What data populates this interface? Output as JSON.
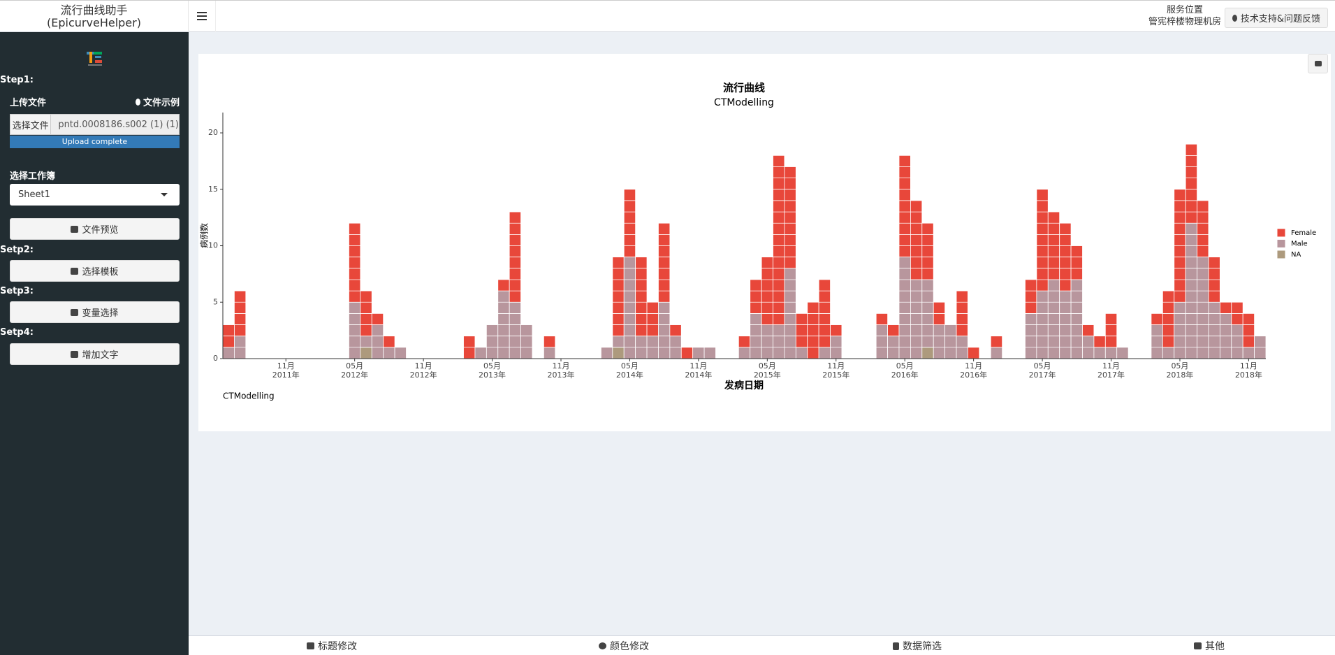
{
  "header": {
    "title_line1": "流行曲线助手",
    "title_line2": "(EpicurveHelper)",
    "service_label": "服务位置",
    "service_location": "管宪梓楼物理机房",
    "support_button": "技术支持&问题反馈"
  },
  "sidebar": {
    "step1": "Step1:",
    "upload_label": "上传文件",
    "example_link": "文件示例",
    "file_button": "选择文件",
    "file_name": "pntd.0008186.s002 (1) (1)",
    "upload_status": "Upload complete",
    "sheet_label": "选择工作簿",
    "sheet_value": "Sheet1",
    "preview_button": "文件预览",
    "step2": "Setp2:",
    "template_button": "选择模板",
    "step3": "Setp3:",
    "variable_button": "变量选择",
    "step4": "Setp4:",
    "text_button": "增加文字"
  },
  "tabs": [
    "标题修改",
    "颜色修改",
    "数据筛选",
    "其他"
  ],
  "chart_data": {
    "type": "bar",
    "stacked": true,
    "title": "流行曲线",
    "subtitle": "CTModelling",
    "caption": "CTModelling",
    "x_label": "发病日期",
    "y_label": "病例数",
    "legend": "right",
    "x": [
      "2011-06",
      "2011-07",
      "2012-05",
      "2012-06",
      "2012-07",
      "2012-08",
      "2012-09",
      "2013-03",
      "2013-04",
      "2013-05",
      "2013-06",
      "2013-07",
      "2013-08",
      "2013-10",
      "2014-03",
      "2014-04",
      "2014-05",
      "2014-06",
      "2014-07",
      "2014-08",
      "2014-09",
      "2014-10",
      "2014-11",
      "2014-12",
      "2015-03",
      "2015-04",
      "2015-05",
      "2015-06",
      "2015-07",
      "2015-08",
      "2015-09",
      "2015-10",
      "2015-11",
      "2016-03",
      "2016-04",
      "2016-05",
      "2016-06",
      "2016-07",
      "2016-08",
      "2016-09",
      "2016-10",
      "2016-11",
      "2017-01",
      "2017-04",
      "2017-05",
      "2017-06",
      "2017-07",
      "2017-08",
      "2017-09",
      "2017-10",
      "2017-11",
      "2017-12",
      "2018-03",
      "2018-04",
      "2018-05",
      "2018-06",
      "2018-07",
      "2018-08",
      "2018-09",
      "2018-10",
      "2018-11",
      "2018-12"
    ],
    "series": [
      {
        "name": "Female",
        "color": "#e8473a",
        "values": [
          2,
          4,
          7,
          4,
          1,
          1,
          0,
          2,
          0,
          0,
          1,
          8,
          0,
          1,
          0,
          7,
          6,
          7,
          3,
          7,
          1,
          1,
          0,
          0,
          1,
          3,
          6,
          15,
          9,
          3,
          5,
          6,
          1,
          1,
          1,
          9,
          7,
          5,
          2,
          0,
          4,
          1,
          1,
          3,
          9,
          6,
          6,
          3,
          1,
          1,
          3,
          0,
          1,
          5,
          10,
          7,
          5,
          4,
          1,
          2,
          3,
          0
        ]
      },
      {
        "name": "Male",
        "color": "#b8969d",
        "values": [
          1,
          2,
          5,
          1,
          3,
          1,
          1,
          0,
          1,
          3,
          6,
          5,
          3,
          1,
          1,
          1,
          9,
          2,
          2,
          5,
          2,
          0,
          1,
          1,
          1,
          4,
          3,
          3,
          8,
          1,
          0,
          1,
          2,
          3,
          2,
          9,
          7,
          6,
          3,
          3,
          2,
          0,
          1,
          4,
          6,
          7,
          6,
          7,
          2,
          1,
          1,
          1,
          3,
          1,
          5,
          12,
          9,
          5,
          4,
          3,
          1,
          2
        ]
      },
      {
        "name": "NA",
        "color": "#ad9a7d",
        "values": [
          0,
          0,
          0,
          1,
          0,
          0,
          0,
          0,
          0,
          0,
          0,
          0,
          0,
          0,
          0,
          1,
          0,
          0,
          0,
          0,
          0,
          0,
          0,
          0,
          0,
          0,
          0,
          0,
          0,
          0,
          0,
          0,
          0,
          0,
          0,
          0,
          0,
          1,
          0,
          0,
          0,
          0,
          0,
          0,
          0,
          0,
          0,
          0,
          0,
          0,
          0,
          0,
          0,
          0,
          0,
          0,
          0,
          0,
          0,
          0,
          0,
          0
        ]
      }
    ],
    "xlim": [
      "2011-06",
      "2019-01"
    ],
    "xticks": [
      {
        "value": "2011-11",
        "label": [
          "11月",
          "2011年"
        ]
      },
      {
        "value": "2012-05",
        "label": [
          "05月",
          "2012年"
        ]
      },
      {
        "value": "2012-11",
        "label": [
          "11月",
          "2012年"
        ]
      },
      {
        "value": "2013-05",
        "label": [
          "05月",
          "2013年"
        ]
      },
      {
        "value": "2013-11",
        "label": [
          "11月",
          "2013年"
        ]
      },
      {
        "value": "2014-05",
        "label": [
          "05月",
          "2014年"
        ]
      },
      {
        "value": "2014-11",
        "label": [
          "11月",
          "2014年"
        ]
      },
      {
        "value": "2015-05",
        "label": [
          "05月",
          "2015年"
        ]
      },
      {
        "value": "2015-11",
        "label": [
          "11月",
          "2015年"
        ]
      },
      {
        "value": "2016-05",
        "label": [
          "05月",
          "2016年"
        ]
      },
      {
        "value": "2016-11",
        "label": [
          "11月",
          "2016年"
        ]
      },
      {
        "value": "2017-05",
        "label": [
          "05月",
          "2017年"
        ]
      },
      {
        "value": "2017-11",
        "label": [
          "11月",
          "2017年"
        ]
      },
      {
        "value": "2018-05",
        "label": [
          "05月",
          "2018年"
        ]
      },
      {
        "value": "2018-11",
        "label": [
          "11月",
          "2018年"
        ]
      }
    ],
    "ylim": [
      0,
      21.8
    ],
    "yticks": [
      0,
      5,
      10,
      15,
      20
    ]
  }
}
